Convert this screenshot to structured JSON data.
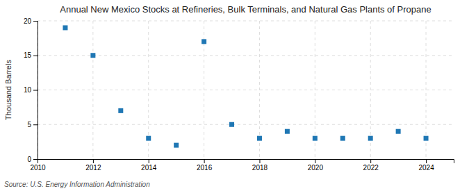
{
  "chart_data": {
    "type": "scatter",
    "title": "Annual New Mexico Stocks at Refineries, Bulk Terminals, and Natural Gas Plants of Propane",
    "y_label": "Thousand Barrels",
    "annotations": [
      "Source: U.S. Energy Information Administration"
    ],
    "x": [
      2011,
      2012,
      2013,
      2014,
      2015,
      2016,
      2017,
      2018,
      2019,
      2020,
      2021,
      2022,
      2023,
      2024
    ],
    "values": [
      19.0,
      15.0,
      7.0,
      3.0,
      2.0,
      17.0,
      5.0,
      3.0,
      4.0,
      3.0,
      3.0,
      3.0,
      4.0,
      3.0
    ],
    "marker": "square",
    "xlim": [
      2010,
      2025
    ],
    "ylim": [
      0,
      20
    ],
    "xticks": [
      2010,
      2012,
      2014,
      2016,
      2018,
      2020,
      2022,
      2024
    ],
    "yticks": [
      0,
      5,
      10,
      15,
      20
    ],
    "grid": true
  }
}
